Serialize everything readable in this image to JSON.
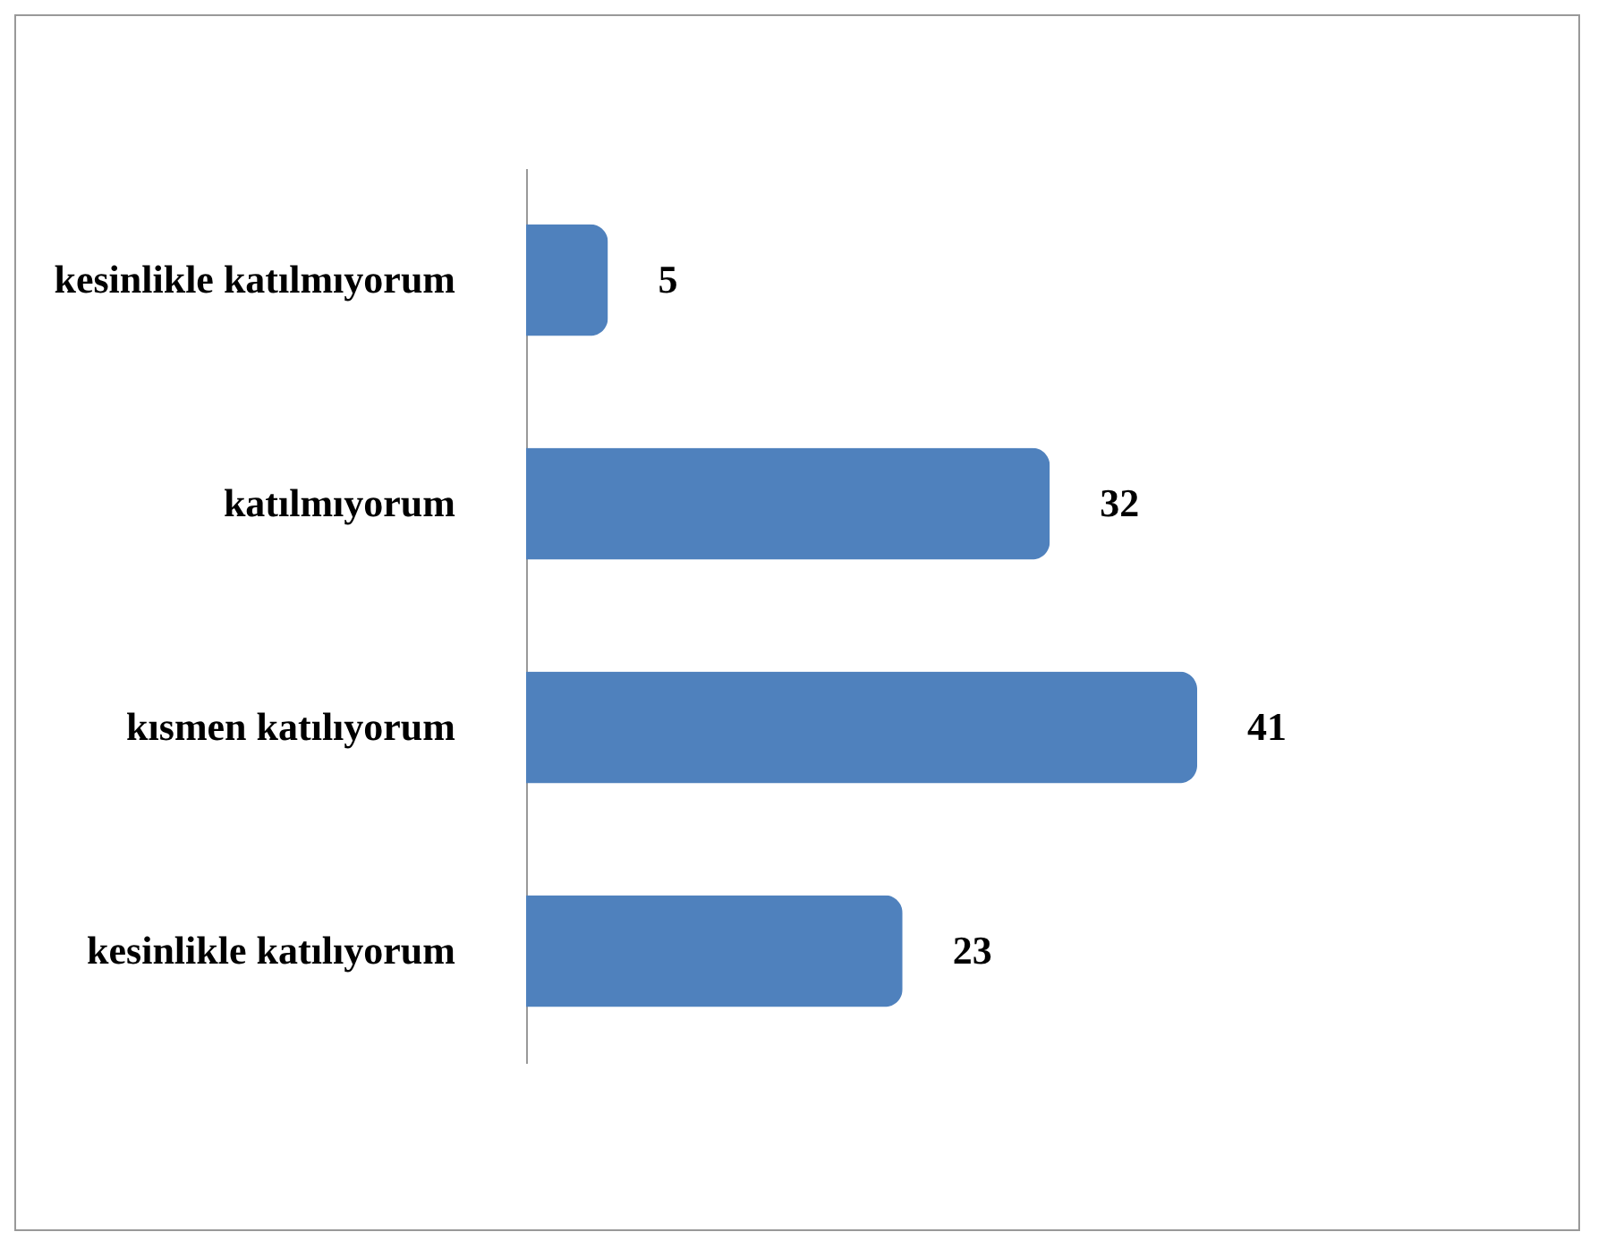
{
  "chart_data": {
    "type": "bar",
    "orientation": "horizontal",
    "categories": [
      "kesinlikle katılmıyorum",
      "katılmıyorum",
      "kısmen katılıyorum",
      "kesinlikle katılıyorum"
    ],
    "values": [
      5,
      32,
      41,
      23
    ],
    "color": "#4f81bd",
    "data_labels": true,
    "grid": false
  }
}
